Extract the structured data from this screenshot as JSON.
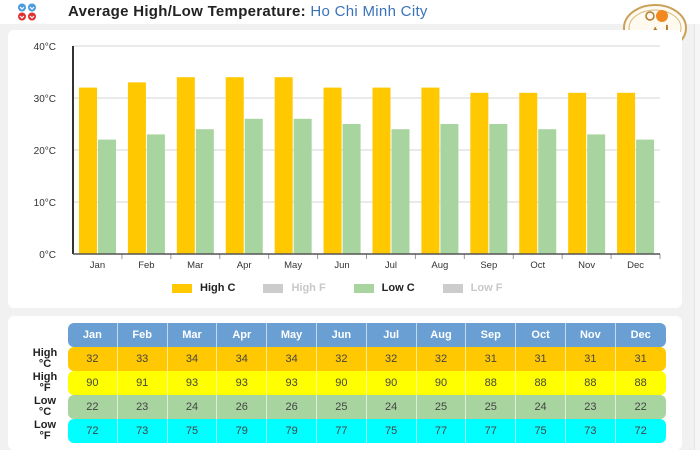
{
  "header": {
    "title": "Average High/Low Temperature:",
    "city": "Ho Chi Minh City",
    "icon": "weather-units-icon",
    "logo": "brand-logo"
  },
  "colors": {
    "high_c": "#ffc800",
    "high_f": "#ffff00",
    "low_c": "#a8d4a0",
    "low_f": "#00ffff",
    "header": "#6a9fd4",
    "legend_disabled": "#cccccc"
  },
  "legend": [
    {
      "label": "High C",
      "active": true
    },
    {
      "label": "High F",
      "active": false
    },
    {
      "label": "Low C",
      "active": true
    },
    {
      "label": "Low F",
      "active": false
    }
  ],
  "chart_data": {
    "type": "bar",
    "title": "Average High/Low Temperature: Ho Chi Minh City",
    "categories": [
      "Jan",
      "Feb",
      "Mar",
      "Apr",
      "May",
      "Jun",
      "Jul",
      "Aug",
      "Sep",
      "Oct",
      "Nov",
      "Dec"
    ],
    "series": [
      {
        "name": "High C",
        "values": [
          32,
          33,
          34,
          34,
          34,
          32,
          32,
          32,
          31,
          31,
          31,
          31
        ]
      },
      {
        "name": "Low C",
        "values": [
          22,
          23,
          24,
          26,
          26,
          25,
          24,
          25,
          25,
          24,
          23,
          22
        ]
      }
    ],
    "ylim": [
      0,
      40
    ],
    "yticks": [
      "0°C",
      "10°C",
      "20°C",
      "30°C",
      "40°C"
    ],
    "ytick_values": [
      0,
      10,
      20,
      30,
      40
    ],
    "xlabel": "",
    "ylabel": "",
    "grid": true,
    "legend_position": "bottom"
  },
  "table": {
    "months": [
      "Jan",
      "Feb",
      "Mar",
      "Apr",
      "May",
      "Jun",
      "Jul",
      "Aug",
      "Sep",
      "Oct",
      "Nov",
      "Dec"
    ],
    "rows": [
      {
        "label1": "High",
        "label2": "°C",
        "key": "high_c",
        "values": [
          32,
          33,
          34,
          34,
          34,
          32,
          32,
          32,
          31,
          31,
          31,
          31
        ]
      },
      {
        "label1": "High",
        "label2": "°F",
        "key": "high_f",
        "values": [
          90,
          91,
          93,
          93,
          93,
          90,
          90,
          90,
          88,
          88,
          88,
          88
        ]
      },
      {
        "label1": "Low",
        "label2": "°C",
        "key": "low_c",
        "values": [
          22,
          23,
          24,
          26,
          26,
          25,
          24,
          25,
          25,
          24,
          23,
          22
        ]
      },
      {
        "label1": "Low",
        "label2": "°F",
        "key": "low_f",
        "values": [
          72,
          73,
          75,
          79,
          79,
          77,
          75,
          77,
          77,
          75,
          73,
          72
        ]
      }
    ]
  }
}
